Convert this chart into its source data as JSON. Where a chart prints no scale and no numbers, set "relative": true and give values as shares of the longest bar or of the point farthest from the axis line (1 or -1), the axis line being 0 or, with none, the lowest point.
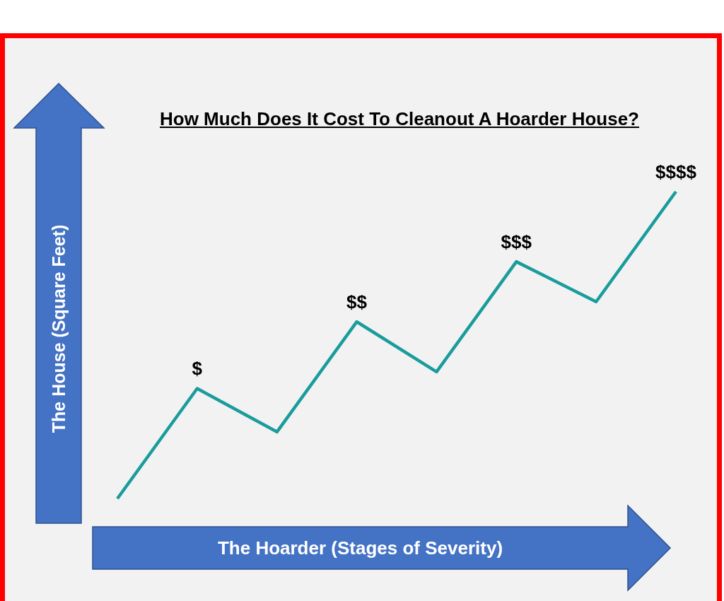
{
  "chart_data": {
    "type": "line",
    "title": "How Much Does It Cost To Cleanout A Hoarder House?",
    "xlabel": "The Hoarder (Stages of Severity)",
    "ylabel": "The House (Square Feet)",
    "relative": true,
    "categories": [
      null,
      null,
      null,
      null,
      null,
      null,
      null,
      null
    ],
    "values": [
      0.08,
      0.41,
      0.28,
      0.61,
      0.46,
      0.79,
      0.67,
      1
    ],
    "color": "#1a9c9c",
    "annotations": [
      {
        "text": "$",
        "y": 0.41
      },
      {
        "text": "$$",
        "y": 0.61
      },
      {
        "text": "$$$",
        "y": 0.79
      },
      {
        "text": "$$$$",
        "y": 1
      }
    ]
  }
}
